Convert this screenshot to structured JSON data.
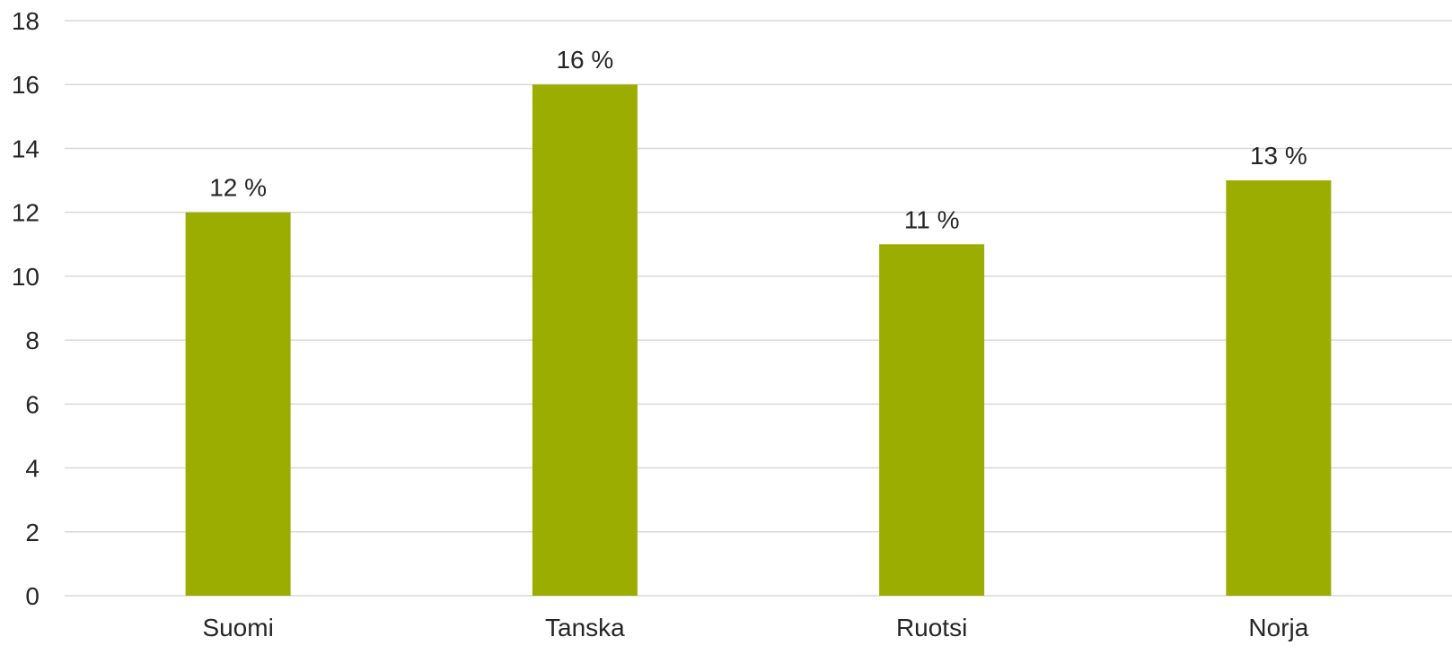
{
  "chart_data": {
    "type": "bar",
    "categories": [
      "Suomi",
      "Tanska",
      "Ruotsi",
      "Norja"
    ],
    "values": [
      12,
      16,
      11,
      13
    ],
    "data_labels": [
      "12 %",
      "16 %",
      "11 %",
      "13 %"
    ],
    "y_ticks": [
      0,
      2,
      4,
      6,
      8,
      10,
      12,
      14,
      16,
      18
    ],
    "ylim": [
      0,
      18
    ],
    "grid": true,
    "legend": "none",
    "title": "",
    "xlabel": "",
    "ylabel": "",
    "colors": {
      "bar": "#9bad00",
      "grid": "#d9d9d9",
      "text": "#262626"
    }
  }
}
